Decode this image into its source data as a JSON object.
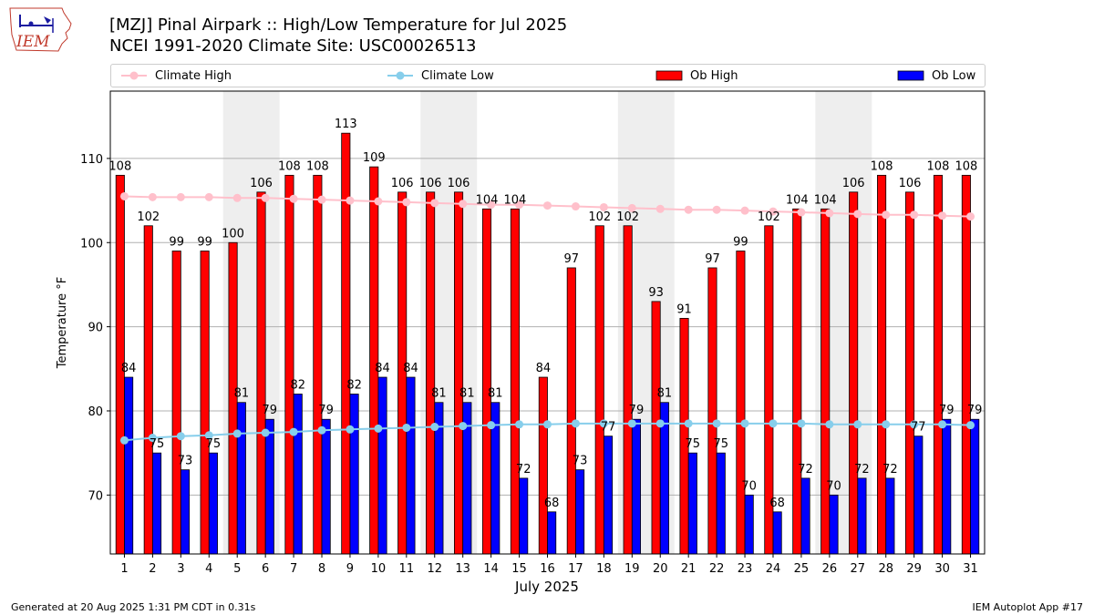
{
  "header": {
    "logo_text": "IEM",
    "title_line1": "[MZJ] Pinal Airpark :: High/Low Temperature for Jul 2025",
    "title_line2": "NCEI 1991-2020 Climate Site: USC00026513"
  },
  "legend": {
    "climate_high": "Climate High",
    "climate_low": "Climate Low",
    "ob_high": "Ob High",
    "ob_low": "Ob Low"
  },
  "colors": {
    "ob_high": "#ff0000",
    "ob_low": "#0000ff",
    "climate_high": "#ffc0cb",
    "climate_low": "#87ceeb",
    "weekend_shade": "#eeeeee",
    "grid": "#b0b0b0"
  },
  "chart_data": {
    "type": "bar",
    "xlabel": "July 2025",
    "ylabel": "Temperature °F",
    "ylim": [
      63,
      118
    ],
    "yticks": [
      70,
      80,
      90,
      100,
      110
    ],
    "grid": "horizontal",
    "legend_position": "top",
    "shaded_days": [
      [
        5,
        6
      ],
      [
        12,
        13
      ],
      [
        19,
        20
      ],
      [
        26,
        27
      ]
    ],
    "categories": [
      "1",
      "2",
      "3",
      "4",
      "5",
      "6",
      "7",
      "8",
      "9",
      "10",
      "11",
      "12",
      "13",
      "14",
      "15",
      "16",
      "17",
      "18",
      "19",
      "20",
      "21",
      "22",
      "23",
      "24",
      "25",
      "26",
      "27",
      "28",
      "29",
      "30",
      "31"
    ],
    "series": [
      {
        "name": "Ob High",
        "kind": "bar",
        "values": [
          108,
          102,
          99,
          99,
          100,
          106,
          108,
          108,
          113,
          109,
          106,
          106,
          106,
          104,
          104,
          84,
          97,
          102,
          102,
          93,
          91,
          97,
          99,
          102,
          104,
          104,
          106,
          108,
          106,
          108,
          108
        ]
      },
      {
        "name": "Ob Low",
        "kind": "bar",
        "values": [
          84,
          75,
          73,
          75,
          81,
          79,
          82,
          79,
          82,
          84,
          84,
          81,
          81,
          81,
          72,
          68,
          73,
          77,
          79,
          81,
          75,
          75,
          70,
          68,
          72,
          70,
          72,
          72,
          77,
          79,
          79
        ]
      },
      {
        "name": "Climate High",
        "kind": "line",
        "values": [
          105.5,
          105.4,
          105.4,
          105.4,
          105.3,
          105.3,
          105.2,
          105.1,
          105.0,
          104.9,
          104.8,
          104.7,
          104.6,
          104.5,
          104.5,
          104.4,
          104.3,
          104.2,
          104.1,
          104.0,
          103.9,
          103.9,
          103.8,
          103.7,
          103.6,
          103.5,
          103.4,
          103.3,
          103.3,
          103.2,
          103.1
        ]
      },
      {
        "name": "Climate Low",
        "kind": "line",
        "values": [
          76.5,
          76.8,
          77.0,
          77.1,
          77.3,
          77.4,
          77.5,
          77.7,
          77.8,
          77.9,
          78.0,
          78.1,
          78.2,
          78.3,
          78.4,
          78.4,
          78.5,
          78.5,
          78.5,
          78.5,
          78.5,
          78.5,
          78.5,
          78.5,
          78.5,
          78.4,
          78.4,
          78.4,
          78.4,
          78.4,
          78.3
        ]
      }
    ]
  },
  "footer": {
    "generated": "Generated at 20 Aug 2025 1:31 PM CDT in 0.31s",
    "app": "IEM Autoplot App #17"
  }
}
